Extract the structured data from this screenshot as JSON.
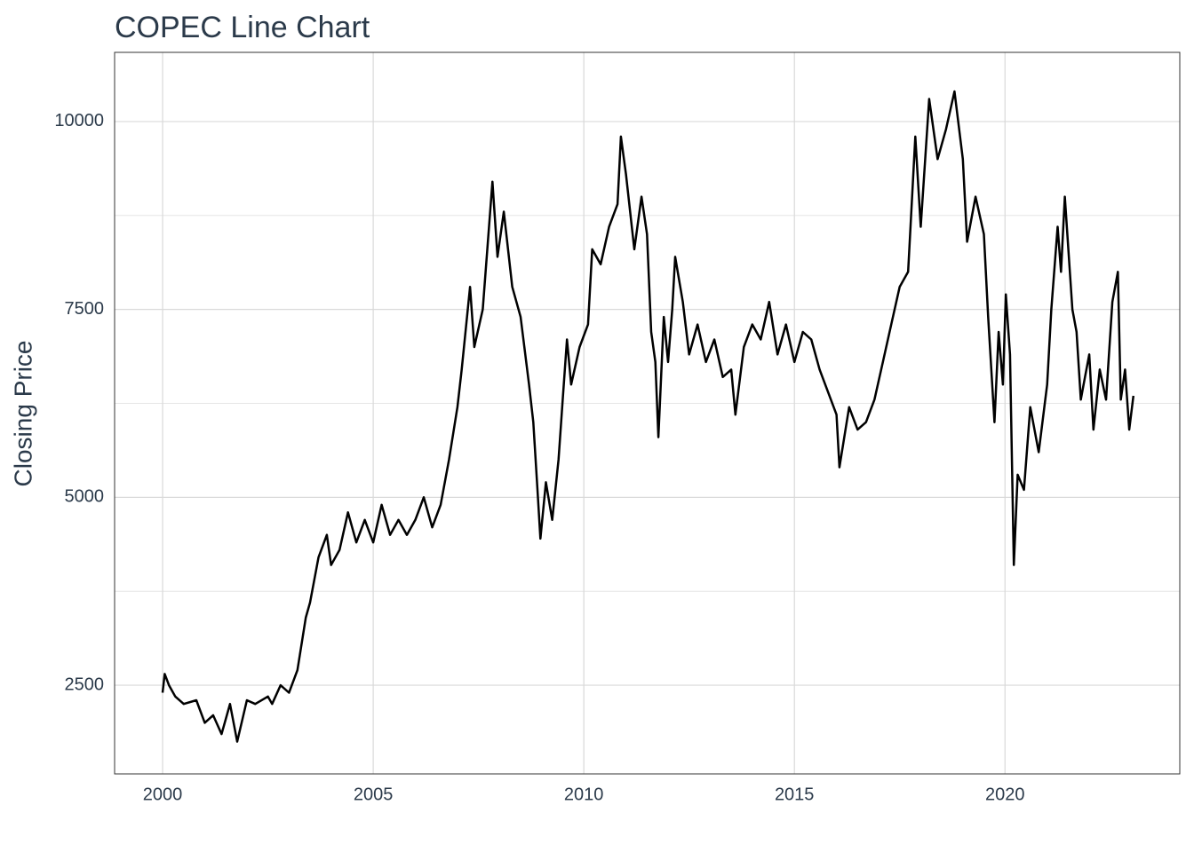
{
  "chart_data": {
    "type": "line",
    "title": "COPEC Line Chart",
    "y_label": "Closing Price",
    "x": [
      2000.0,
      2000.05,
      2000.15,
      2000.3,
      2000.5,
      2000.8,
      2001.0,
      2001.2,
      2001.4,
      2001.6,
      2001.77,
      2002.0,
      2002.2,
      2002.5,
      2002.6,
      2002.8,
      2003.0,
      2003.2,
      2003.4,
      2003.5,
      2003.7,
      2003.9,
      2004.0,
      2004.2,
      2004.4,
      2004.6,
      2004.8,
      2005.0,
      2005.2,
      2005.4,
      2005.6,
      2005.8,
      2006.0,
      2006.2,
      2006.4,
      2006.6,
      2006.8,
      2007.0,
      2007.1,
      2007.3,
      2007.4,
      2007.6,
      2007.83,
      2007.95,
      2008.1,
      2008.3,
      2008.5,
      2008.7,
      2008.8,
      2008.9,
      2008.97,
      2009.1,
      2009.25,
      2009.4,
      2009.5,
      2009.6,
      2009.7,
      2009.9,
      2010.1,
      2010.2,
      2010.4,
      2010.6,
      2010.8,
      2010.88,
      2011.0,
      2011.2,
      2011.37,
      2011.5,
      2011.6,
      2011.7,
      2011.77,
      2011.9,
      2012.0,
      2012.1,
      2012.17,
      2012.35,
      2012.5,
      2012.7,
      2012.9,
      2013.1,
      2013.3,
      2013.5,
      2013.6,
      2013.8,
      2014.0,
      2014.2,
      2014.4,
      2014.6,
      2014.8,
      2015.0,
      2015.2,
      2015.4,
      2015.6,
      2015.8,
      2016.0,
      2016.07,
      2016.3,
      2016.5,
      2016.7,
      2016.9,
      2017.1,
      2017.3,
      2017.5,
      2017.7,
      2017.87,
      2018.0,
      2018.2,
      2018.4,
      2018.6,
      2018.8,
      2019.0,
      2019.1,
      2019.3,
      2019.5,
      2019.6,
      2019.75,
      2019.85,
      2019.95,
      2020.02,
      2020.12,
      2020.21,
      2020.3,
      2020.45,
      2020.6,
      2020.8,
      2021.0,
      2021.1,
      2021.25,
      2021.33,
      2021.42,
      2021.6,
      2021.7,
      2021.8,
      2021.9,
      2022.0,
      2022.1,
      2022.25,
      2022.4,
      2022.55,
      2022.68,
      2022.75,
      2022.85,
      2022.95,
      2023.05
    ],
    "series": [
      {
        "color": "#000000",
        "values": [
          2400,
          2650,
          2500,
          2350,
          2250,
          2300,
          2000,
          2100,
          1850,
          2250,
          1750,
          2300,
          2250,
          2350,
          2250,
          2500,
          2400,
          2700,
          3400,
          3600,
          4200,
          4500,
          4100,
          4300,
          4800,
          4400,
          4700,
          4400,
          4900,
          4500,
          4700,
          4500,
          4700,
          5000,
          4600,
          4900,
          5500,
          6200,
          6700,
          7800,
          7000,
          7500,
          9200,
          8200,
          8800,
          7800,
          7400,
          6500,
          6000,
          5100,
          4450,
          5200,
          4700,
          5500,
          6300,
          7100,
          6500,
          7000,
          7300,
          8300,
          8100,
          8600,
          8900,
          9800,
          9300,
          8300,
          9000,
          8500,
          7200,
          6800,
          5800,
          7400,
          6800,
          7500,
          8200,
          7600,
          6900,
          7300,
          6800,
          7100,
          6600,
          6700,
          6100,
          7000,
          7300,
          7100,
          7600,
          6900,
          7300,
          6800,
          7200,
          7100,
          6700,
          6400,
          6100,
          5400,
          6200,
          5900,
          6000,
          6300,
          6800,
          7300,
          7800,
          8000,
          9800,
          8600,
          10300,
          9500,
          9900,
          10400,
          9500,
          8400,
          9000,
          8500,
          7400,
          6000,
          7200,
          6500,
          7700,
          6900,
          4100,
          5300,
          5100,
          6200,
          5600,
          6500,
          7500,
          8600,
          8000,
          9000,
          7500,
          7200,
          6300,
          6600,
          6900,
          5900,
          6700,
          6300,
          7600,
          8000,
          6300,
          6700,
          5900,
          6350
        ]
      }
    ],
    "xlim": [
      1998.86,
      2024.15
    ],
    "xticks": [
      2000,
      2005,
      2010,
      2015,
      2020
    ],
    "ylim": [
      1320,
      10920
    ],
    "yticks": [
      2500,
      5000,
      7500,
      10000
    ],
    "minor_yticks": [
      3750,
      6250,
      8750
    ],
    "grid": true
  }
}
